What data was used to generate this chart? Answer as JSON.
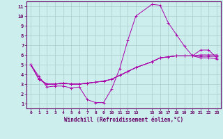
{
  "xlabel": "Windchill (Refroidissement éolien,°C)",
  "background_color": "#cceeed",
  "grid_color": "#aacccc",
  "line_color": "#aa00aa",
  "spine_color": "#660066",
  "xlim": [
    -0.5,
    23.5
  ],
  "ylim": [
    0.5,
    11.5
  ],
  "xticks": [
    0,
    1,
    2,
    3,
    4,
    5,
    6,
    7,
    8,
    9,
    10,
    11,
    12,
    13,
    15,
    16,
    17,
    18,
    19,
    20,
    21,
    22,
    23
  ],
  "yticks": [
    1,
    2,
    3,
    4,
    5,
    6,
    7,
    8,
    9,
    10,
    11
  ],
  "series": [
    [
      5.0,
      3.8,
      2.7,
      2.8,
      2.8,
      2.6,
      2.7,
      1.4,
      1.1,
      1.1,
      2.5,
      4.6,
      7.5,
      10.0,
      11.2,
      11.1,
      9.3,
      8.1,
      6.9,
      5.9,
      6.5,
      6.5,
      5.7
    ],
    [
      5.0,
      3.5,
      3.0,
      3.0,
      3.1,
      3.0,
      3.0,
      3.1,
      3.2,
      3.3,
      3.5,
      3.9,
      4.3,
      4.7,
      5.3,
      5.7,
      5.8,
      5.9,
      5.9,
      5.9,
      6.0,
      6.0,
      6.0
    ],
    [
      5.0,
      3.5,
      3.0,
      3.0,
      3.1,
      3.0,
      3.0,
      3.1,
      3.2,
      3.3,
      3.5,
      3.9,
      4.3,
      4.7,
      5.3,
      5.7,
      5.8,
      5.9,
      5.9,
      5.9,
      5.85,
      5.85,
      5.85
    ],
    [
      5.0,
      3.5,
      3.0,
      3.0,
      3.1,
      3.0,
      3.0,
      3.1,
      3.2,
      3.3,
      3.5,
      3.9,
      4.3,
      4.7,
      5.3,
      5.7,
      5.8,
      5.9,
      5.9,
      5.9,
      5.7,
      5.7,
      5.6
    ]
  ],
  "x_values": [
    0,
    1,
    2,
    3,
    4,
    5,
    6,
    7,
    8,
    9,
    10,
    11,
    12,
    13,
    15,
    16,
    17,
    18,
    19,
    20,
    21,
    22,
    23
  ]
}
